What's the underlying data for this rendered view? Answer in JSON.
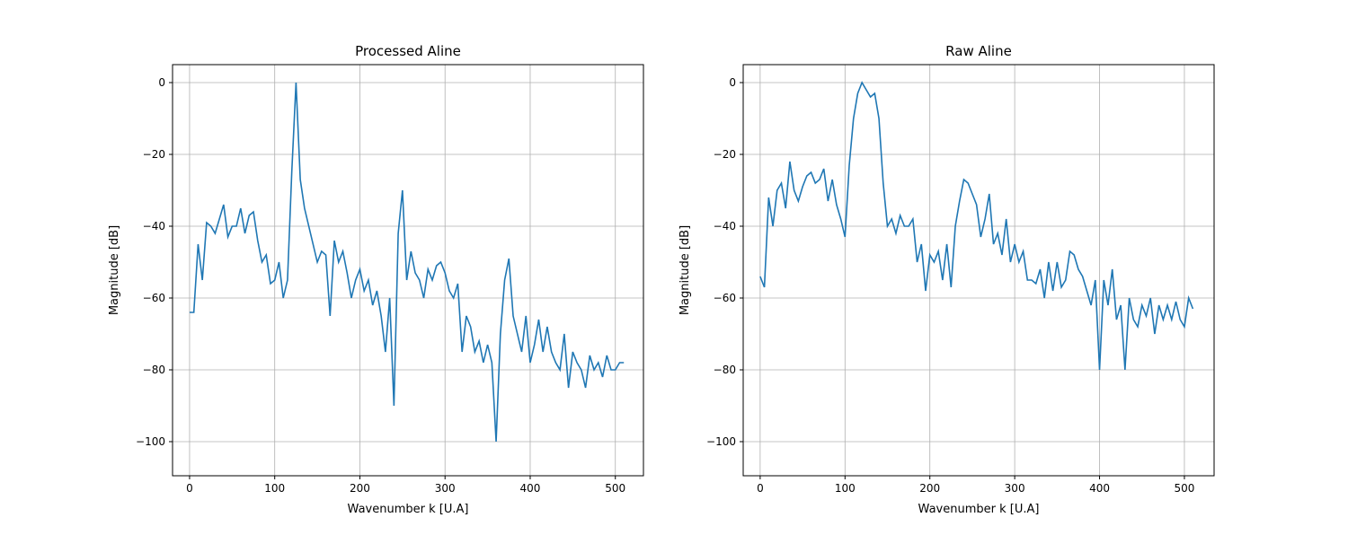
{
  "chart_data": [
    {
      "type": "line",
      "title": "Processed Aline",
      "x_label": "Wavenumber k [U.A]",
      "y_label": "Magnitude [dB]",
      "color": "#1f77b4",
      "grid": true,
      "xlim": [
        -20,
        533
      ],
      "ylim": [
        -109.5,
        5
      ],
      "xticks": [
        0,
        100,
        200,
        300,
        400,
        500
      ],
      "yticks": [
        {
          "value": -100,
          "label": "−100"
        },
        {
          "value": -80,
          "label": "−80"
        },
        {
          "value": -60,
          "label": "−60"
        },
        {
          "value": -40,
          "label": "−40"
        },
        {
          "value": -20,
          "label": "−20"
        },
        0
      ],
      "x": [
        0,
        5,
        10,
        15,
        20,
        25,
        30,
        35,
        40,
        45,
        50,
        55,
        60,
        65,
        70,
        75,
        80,
        85,
        90,
        95,
        100,
        105,
        110,
        115,
        120,
        125,
        130,
        135,
        140,
        145,
        150,
        155,
        160,
        165,
        170,
        175,
        180,
        185,
        190,
        195,
        200,
        205,
        210,
        215,
        220,
        225,
        230,
        235,
        240,
        245,
        250,
        255,
        260,
        265,
        270,
        275,
        280,
        285,
        290,
        295,
        300,
        305,
        310,
        315,
        320,
        325,
        330,
        335,
        340,
        345,
        350,
        355,
        360,
        365,
        370,
        375,
        380,
        385,
        390,
        395,
        400,
        405,
        410,
        415,
        420,
        425,
        430,
        435,
        440,
        445,
        450,
        455,
        460,
        465,
        470,
        475,
        480,
        485,
        490,
        495,
        500,
        505,
        510
      ],
      "values": [
        -64,
        -64,
        -45,
        -55,
        -39,
        -40,
        -42,
        -38,
        -34,
        -43,
        -40,
        -40,
        -35,
        -42,
        -37,
        -36,
        -44,
        -50,
        -48,
        -56,
        -55,
        -50,
        -60,
        -55,
        -25,
        0,
        -27,
        -35,
        -40,
        -45,
        -50,
        -47,
        -48,
        -65,
        -44,
        -50,
        -47,
        -53,
        -60,
        -55,
        -52,
        -58,
        -55,
        -62,
        -58,
        -65,
        -75,
        -60,
        -90,
        -42,
        -30,
        -55,
        -47,
        -53,
        -55,
        -60,
        -52,
        -55,
        -51,
        -50,
        -53,
        -58,
        -60,
        -56,
        -75,
        -65,
        -68,
        -75,
        -72,
        -78,
        -73,
        -78,
        -100,
        -70,
        -55,
        -49,
        -65,
        -70,
        -75,
        -65,
        -78,
        -73,
        -66,
        -75,
        -68,
        -75,
        -78,
        -80,
        -70,
        -85,
        -75,
        -78,
        -80,
        -85,
        -76,
        -80,
        -78,
        -82,
        -76,
        -80,
        -80,
        -78,
        -78
      ]
    },
    {
      "type": "line",
      "title": "Raw Aline",
      "x_label": "Wavenumber k [U.A]",
      "y_label": "Magnitude [dB]",
      "color": "#1f77b4",
      "grid": true,
      "xlim": [
        -20,
        535
      ],
      "ylim": [
        -109.5,
        5
      ],
      "xticks": [
        0,
        100,
        200,
        300,
        400,
        500
      ],
      "yticks": [
        {
          "value": -100,
          "label": "−100"
        },
        {
          "value": -80,
          "label": "−80"
        },
        {
          "value": -60,
          "label": "−60"
        },
        {
          "value": -40,
          "label": "−40"
        },
        {
          "value": -20,
          "label": "−20"
        },
        0
      ],
      "x": [
        0,
        5,
        10,
        15,
        20,
        25,
        30,
        35,
        40,
        45,
        50,
        55,
        60,
        65,
        70,
        75,
        80,
        85,
        90,
        95,
        100,
        105,
        110,
        115,
        120,
        125,
        130,
        135,
        140,
        145,
        150,
        155,
        160,
        165,
        170,
        175,
        180,
        185,
        190,
        195,
        200,
        205,
        210,
        215,
        220,
        225,
        230,
        235,
        240,
        245,
        250,
        255,
        260,
        265,
        270,
        275,
        280,
        285,
        290,
        295,
        300,
        305,
        310,
        315,
        320,
        325,
        330,
        335,
        340,
        345,
        350,
        355,
        360,
        365,
        370,
        375,
        380,
        385,
        390,
        395,
        400,
        405,
        410,
        415,
        420,
        425,
        430,
        435,
        440,
        445,
        450,
        455,
        460,
        465,
        470,
        475,
        480,
        485,
        490,
        495,
        500,
        505,
        510
      ],
      "values": [
        -54,
        -57,
        -32,
        -40,
        -30,
        -28,
        -35,
        -22,
        -30,
        -33,
        -29,
        -26,
        -25,
        -28,
        -27,
        -24,
        -33,
        -27,
        -34,
        -38,
        -43,
        -23,
        -10,
        -3,
        0,
        -2,
        -4,
        -3,
        -10,
        -28,
        -40,
        -38,
        -42,
        -37,
        -40,
        -40,
        -38,
        -50,
        -45,
        -58,
        -48,
        -50,
        -47,
        -55,
        -45,
        -57,
        -40,
        -33,
        -27,
        -28,
        -31,
        -34,
        -43,
        -38,
        -31,
        -45,
        -42,
        -48,
        -38,
        -50,
        -45,
        -50,
        -47,
        -55,
        -55,
        -56,
        -52,
        -60,
        -50,
        -58,
        -50,
        -57,
        -55,
        -47,
        -48,
        -52,
        -54,
        -58,
        -62,
        -55,
        -80,
        -55,
        -62,
        -52,
        -66,
        -62,
        -80,
        -60,
        -66,
        -68,
        -62,
        -65,
        -60,
        -70,
        -62,
        -66,
        -62,
        -66,
        -61,
        -66,
        -68,
        -60,
        -63
      ]
    }
  ]
}
